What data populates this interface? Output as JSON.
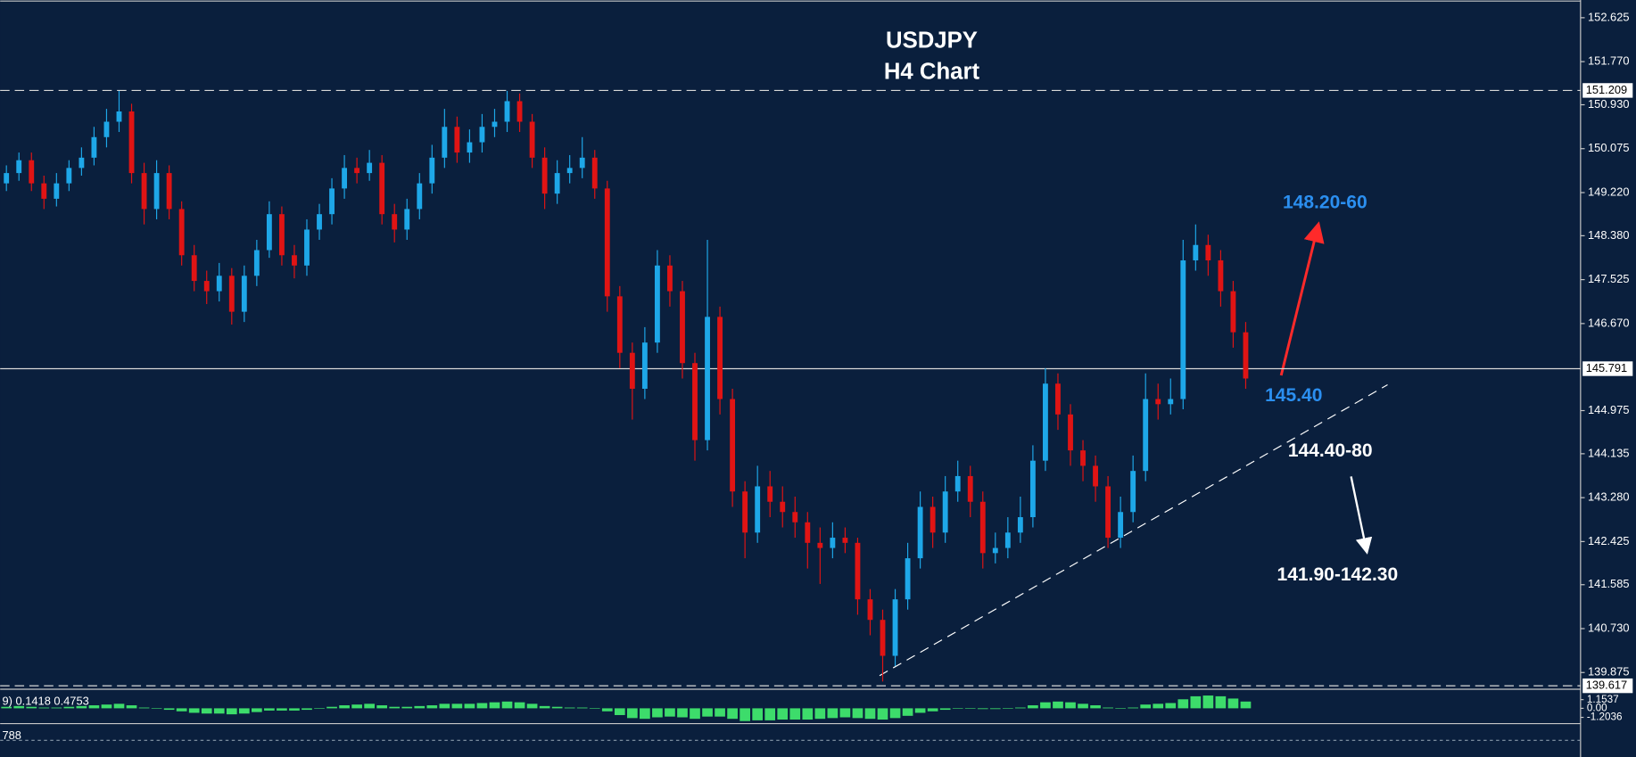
{
  "chart_data": {
    "type": "candlestick",
    "title": "USDJPY",
    "subtitle": "H4 Chart",
    "up_color": "#1ea7e8",
    "down_color": "#e01414",
    "ylim": [
      139.57,
      152.97
    ],
    "yticks": [
      152.625,
      {
        "value": 151.77,
        "label": "151.770"
      },
      {
        "value": 150.93,
        "label": "150.930"
      },
      150.075,
      {
        "value": 149.22,
        "label": "149.220"
      },
      {
        "value": 148.38,
        "label": "148.380"
      },
      147.525,
      {
        "value": 146.67,
        "label": "146.670"
      },
      144.975,
      144.135,
      {
        "value": 143.28,
        "label": "143.280"
      },
      142.425,
      141.585,
      {
        "value": 140.73,
        "label": "140.730"
      },
      139.875
    ],
    "levels": [
      {
        "value": 151.209,
        "style": "dashed"
      },
      {
        "value": 145.791,
        "style": "solid"
      },
      {
        "value": 139.617,
        "style": "dashed"
      }
    ],
    "annotations": [
      {
        "text": "148.20-60",
        "color": "#2b8ff0"
      },
      {
        "text": "145.40",
        "color": "#2b8ff0"
      },
      {
        "text": "144.40-80",
        "color": "#ffffff"
      },
      {
        "text": "141.90-142.30",
        "color": "#ffffff"
      }
    ],
    "candles": [
      [
        149.4,
        149.75,
        149.25,
        149.6
      ],
      [
        149.6,
        150.0,
        149.45,
        149.85
      ],
      [
        149.85,
        150.0,
        149.25,
        149.4
      ],
      [
        149.4,
        149.55,
        148.9,
        149.1
      ],
      [
        149.1,
        149.6,
        148.95,
        149.4
      ],
      [
        149.4,
        149.85,
        149.25,
        149.7
      ],
      [
        149.7,
        150.1,
        149.55,
        149.9
      ],
      [
        149.9,
        150.5,
        149.75,
        150.3
      ],
      [
        150.3,
        150.85,
        150.1,
        150.6
      ],
      [
        150.6,
        151.2,
        150.4,
        150.8
      ],
      [
        150.8,
        150.95,
        149.4,
        149.6
      ],
      [
        149.6,
        149.8,
        148.6,
        148.9
      ],
      [
        148.9,
        149.85,
        148.7,
        149.6
      ],
      [
        149.6,
        149.75,
        148.7,
        148.9
      ],
      [
        148.9,
        149.05,
        147.8,
        148.0
      ],
      [
        148.0,
        148.2,
        147.3,
        147.5
      ],
      [
        147.5,
        147.7,
        147.05,
        147.3
      ],
      [
        147.3,
        147.85,
        147.1,
        147.6
      ],
      [
        147.6,
        147.75,
        146.65,
        146.9
      ],
      [
        146.9,
        147.8,
        146.7,
        147.6
      ],
      [
        147.6,
        148.3,
        147.4,
        148.1
      ],
      [
        148.1,
        149.05,
        147.95,
        148.8
      ],
      [
        148.8,
        148.95,
        147.8,
        148.0
      ],
      [
        148.0,
        148.2,
        147.55,
        147.8
      ],
      [
        147.8,
        148.7,
        147.6,
        148.5
      ],
      [
        148.5,
        149.0,
        148.3,
        148.8
      ],
      [
        148.8,
        149.5,
        148.6,
        149.3
      ],
      [
        149.3,
        149.95,
        149.1,
        149.7
      ],
      [
        149.7,
        149.9,
        149.4,
        149.6
      ],
      [
        149.6,
        150.05,
        149.45,
        149.8
      ],
      [
        149.8,
        149.95,
        148.6,
        148.8
      ],
      [
        148.8,
        149.0,
        148.25,
        148.5
      ],
      [
        148.5,
        149.1,
        148.3,
        148.9
      ],
      [
        148.9,
        149.6,
        148.7,
        149.4
      ],
      [
        149.4,
        150.15,
        149.2,
        149.9
      ],
      [
        149.9,
        150.85,
        149.7,
        150.5
      ],
      [
        150.5,
        150.7,
        149.8,
        150.0
      ],
      [
        150.0,
        150.45,
        149.8,
        150.2
      ],
      [
        150.2,
        150.75,
        150.0,
        150.5
      ],
      [
        150.5,
        150.85,
        150.3,
        150.6
      ],
      [
        150.6,
        151.2,
        150.4,
        151.0
      ],
      [
        151.0,
        151.15,
        150.4,
        150.6
      ],
      [
        150.6,
        150.75,
        149.7,
        149.9
      ],
      [
        149.9,
        150.1,
        148.9,
        149.2
      ],
      [
        149.2,
        149.85,
        149.0,
        149.6
      ],
      [
        149.6,
        149.95,
        149.4,
        149.7
      ],
      [
        149.7,
        150.3,
        149.5,
        149.9
      ],
      [
        149.9,
        150.05,
        149.1,
        149.3
      ],
      [
        149.3,
        149.45,
        146.9,
        147.2
      ],
      [
        147.2,
        147.4,
        145.8,
        146.1
      ],
      [
        146.1,
        146.3,
        144.8,
        145.4
      ],
      [
        145.4,
        146.6,
        145.2,
        146.3
      ],
      [
        146.3,
        148.1,
        146.1,
        147.8
      ],
      [
        147.8,
        148.0,
        147.0,
        147.3
      ],
      [
        147.3,
        147.5,
        145.6,
        145.9
      ],
      [
        145.9,
        146.1,
        144.0,
        144.4
      ],
      [
        144.4,
        148.3,
        144.2,
        146.8
      ],
      [
        146.8,
        147.0,
        144.9,
        145.2
      ],
      [
        145.2,
        145.4,
        143.1,
        143.4
      ],
      [
        143.4,
        143.6,
        142.1,
        142.6
      ],
      [
        142.6,
        143.9,
        142.4,
        143.5
      ],
      [
        143.5,
        143.8,
        142.9,
        143.2
      ],
      [
        143.2,
        143.5,
        142.7,
        143.0
      ],
      [
        143.0,
        143.3,
        142.5,
        142.8
      ],
      [
        142.8,
        143.0,
        141.9,
        142.4
      ],
      [
        142.4,
        142.7,
        141.6,
        142.3
      ],
      [
        142.3,
        142.8,
        142.1,
        142.5
      ],
      [
        142.5,
        142.7,
        142.2,
        142.4
      ],
      [
        142.4,
        142.5,
        141.0,
        141.3
      ],
      [
        141.3,
        141.5,
        140.6,
        140.9
      ],
      [
        140.9,
        141.1,
        139.7,
        140.2
      ],
      [
        140.2,
        141.5,
        140.0,
        141.3
      ],
      [
        141.3,
        142.4,
        141.1,
        142.1
      ],
      [
        142.1,
        143.4,
        141.9,
        143.1
      ],
      [
        143.1,
        143.3,
        142.3,
        142.6
      ],
      [
        142.6,
        143.7,
        142.4,
        143.4
      ],
      [
        143.4,
        144.0,
        143.2,
        143.7
      ],
      [
        143.7,
        143.9,
        142.9,
        143.2
      ],
      [
        143.2,
        143.4,
        141.9,
        142.2
      ],
      [
        142.2,
        142.6,
        142.0,
        142.3
      ],
      [
        142.3,
        142.9,
        142.1,
        142.6
      ],
      [
        142.6,
        143.3,
        142.4,
        142.9
      ],
      [
        142.9,
        144.3,
        142.7,
        144.0
      ],
      [
        144.0,
        145.8,
        143.8,
        145.5
      ],
      [
        145.5,
        145.7,
        144.6,
        144.9
      ],
      [
        144.9,
        145.1,
        143.9,
        144.2
      ],
      [
        144.2,
        144.4,
        143.6,
        143.9
      ],
      [
        143.9,
        144.1,
        143.2,
        143.5
      ],
      [
        143.5,
        143.7,
        142.3,
        142.5
      ],
      [
        142.5,
        143.3,
        142.3,
        143.0
      ],
      [
        143.0,
        144.1,
        142.8,
        143.8
      ],
      [
        143.8,
        145.7,
        143.6,
        145.2
      ],
      [
        145.2,
        145.5,
        144.8,
        145.1
      ],
      [
        145.1,
        145.6,
        144.9,
        145.2
      ],
      [
        145.2,
        148.3,
        145.0,
        147.9
      ],
      [
        147.9,
        148.6,
        147.7,
        148.2
      ],
      [
        148.2,
        148.4,
        147.6,
        147.9
      ],
      [
        147.9,
        148.1,
        147.0,
        147.3
      ],
      [
        147.3,
        147.5,
        146.2,
        146.5
      ],
      [
        146.5,
        146.7,
        145.4,
        145.6
      ]
    ],
    "macd": {
      "label": "9) 0.1418 0.4753",
      "color": "#3ddc6b",
      "ylim": [
        -1.9,
        2.4
      ],
      "yticks": [
        1.1537,
        {
          "value": 0,
          "label": "0.00"
        },
        -1.2036
      ],
      "histogram": [
        0.2,
        0.3,
        0.2,
        0.1,
        0.1,
        0.2,
        0.3,
        0.4,
        0.5,
        0.6,
        0.4,
        0.1,
        0.0,
        -0.2,
        -0.4,
        -0.6,
        -0.7,
        -0.7,
        -0.8,
        -0.7,
        -0.5,
        -0.3,
        -0.3,
        -0.3,
        -0.2,
        0.0,
        0.2,
        0.4,
        0.5,
        0.6,
        0.4,
        0.2,
        0.2,
        0.3,
        0.4,
        0.6,
        0.6,
        0.6,
        0.7,
        0.8,
        0.9,
        0.8,
        0.6,
        0.3,
        0.2,
        0.1,
        0.1,
        0.0,
        -0.4,
        -0.9,
        -1.3,
        -1.4,
        -1.2,
        -1.1,
        -1.2,
        -1.4,
        -1.1,
        -1.1,
        -1.4,
        -1.7,
        -1.6,
        -1.6,
        -1.5,
        -1.5,
        -1.5,
        -1.4,
        -1.3,
        -1.2,
        -1.3,
        -1.4,
        -1.5,
        -1.3,
        -1.0,
        -0.6,
        -0.4,
        -0.2,
        0.0,
        0.0,
        -0.1,
        -0.1,
        0.0,
        0.1,
        0.4,
        0.8,
        0.9,
        0.8,
        0.6,
        0.4,
        0.1,
        0.0,
        0.1,
        0.5,
        0.6,
        0.7,
        1.2,
        1.6,
        1.7,
        1.6,
        1.3,
        0.9
      ]
    },
    "oscillator": {
      "label": "788"
    }
  }
}
